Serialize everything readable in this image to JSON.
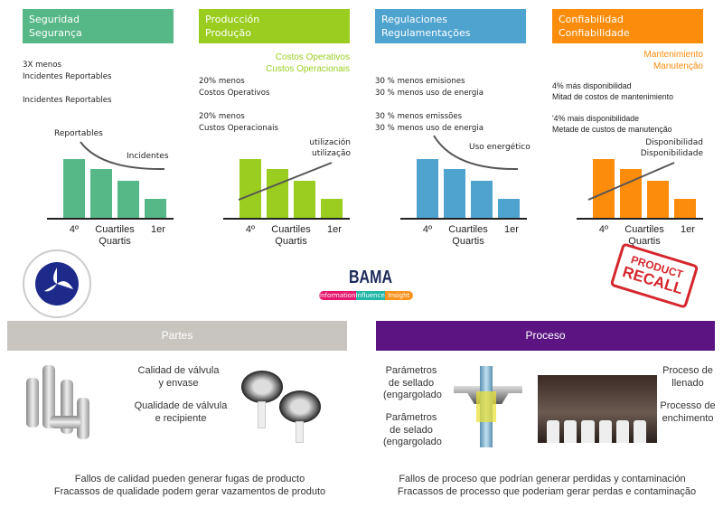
{
  "panels": [
    {
      "title1": "Seguridad",
      "title2": "Segurança",
      "color": "#57b887",
      "lines": [
        "3X menos",
        "Incidentes Reportables",
        "",
        "Incidentes Reportables"
      ],
      "ann1": "Reportables",
      "ann2": "Incidentes",
      "trend": "down"
    },
    {
      "title1": "Producción",
      "title2": "Produção",
      "color": "#9acd1f",
      "sub1": "Costos Operativos",
      "sub2": "Custos Operacionais",
      "lines": [
        "20% menos",
        "Costos Operativos",
        "",
        "20% menos",
        "Custos Operacionais"
      ],
      "ann1": "utilización",
      "ann2": "utilização",
      "trend": "up"
    },
    {
      "title1": "Regulaciones",
      "title2": "Regulamentações",
      "color": "#4fa3cf",
      "lines": [
        "30 % menos emisiones",
        "30 % menos uso de energia",
        "",
        "30 % menos emissões",
        "30 % menos uso de energia"
      ],
      "ann1": "Uso energético",
      "trend": "down"
    },
    {
      "title1": "Confiabilidad",
      "title2": "Confiabilidade",
      "color": "#fb8c0c",
      "sub1": "Mantenimiento",
      "sub2": "Manutenção",
      "lines": [
        "4% más disponibilidad",
        "Mitad de costos de mantenimiento",
        "",
        "'4% mais disponibilidade",
        "Metade de custos de manutenção"
      ],
      "ann1": "Disponibilidad",
      "ann2": "Disponibilidade",
      "trend": "up"
    }
  ],
  "chart_data": {
    "type": "bar",
    "categories": [
      "4º",
      "",
      "",
      "1er"
    ],
    "values": [
      100,
      84,
      63,
      33
    ],
    "xlabel": "Cuartiles",
    "xlabel2": "Quartis"
  },
  "logos": {
    "dot": "DEPARTMENT OF TRANSPORTATION · UNITED STATES OF AMERICA",
    "bama": "BAMA",
    "bama_tags": [
      "Information",
      "Influence",
      "Insight"
    ],
    "recall1": "PRODUCT",
    "recall2": "RECALL"
  },
  "partes": {
    "title": "Partes",
    "t1": "Calidad de válvula",
    "t2": "y envase",
    "t3": "Qualidade de válvula",
    "t4": "e recipiente",
    "f1": "Fallos de calidad pueden generar fugas de producto",
    "f2": "Fracassos de qualidade podem gerar vazamentos de produto"
  },
  "proceso": {
    "title": "Proceso",
    "p1": "Parámetros",
    "p2": "de sellado",
    "p3": "(engargolado",
    "p4": "Parâmetros",
    "p5": "de selado",
    "p6": "(engargolado",
    "r1": "Proceso de",
    "r2": "llenado",
    "r3": "Processo de",
    "r4": "enchimento",
    "f1": "Fallos de proceso que podrían generar perdidas y contaminación",
    "f2": "Fracassos de processo que poderiam gerar perdas e contaminação"
  }
}
